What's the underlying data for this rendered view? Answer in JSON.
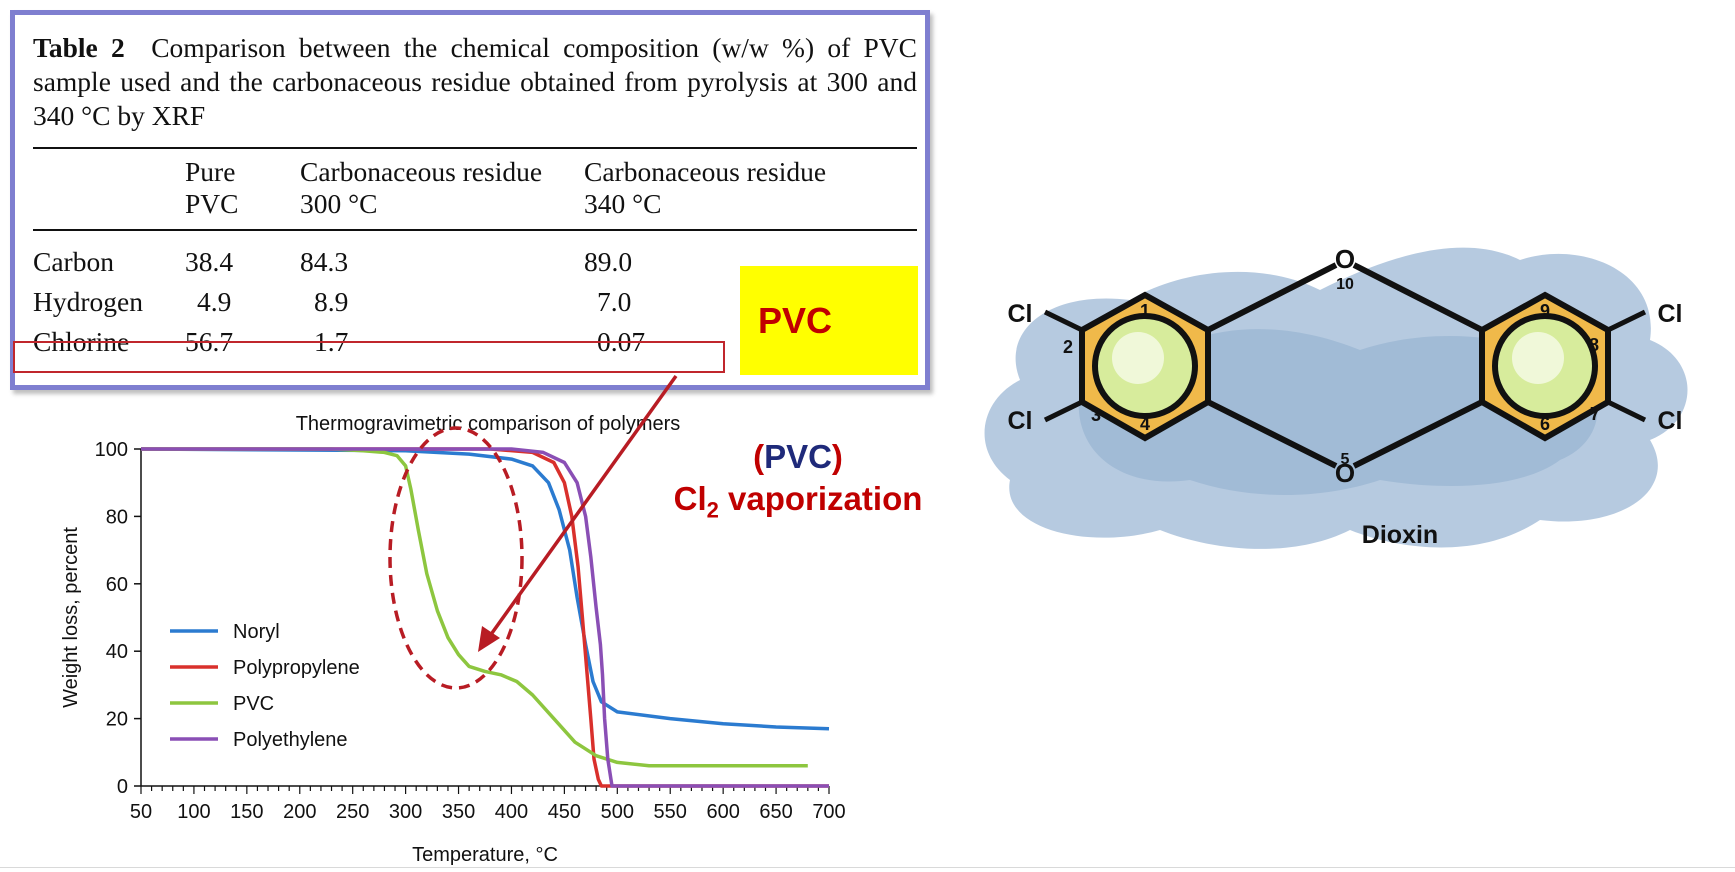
{
  "table": {
    "caption_label": "Table 2",
    "caption_text": "Comparison between the chemical composition (w/w %) of PVC sample used and the carbonaceous residue obtained from pyrolysis at 300 and 340 °C by XRF",
    "headers": [
      [
        "Pure",
        "PVC"
      ],
      [
        "Carbonaceous residue",
        "300 °C"
      ],
      [
        "Carbonaceous residue",
        "340 °C"
      ]
    ],
    "rows": [
      {
        "label": "Carbon",
        "values": [
          "38.4",
          "84.3",
          "89.0"
        ]
      },
      {
        "label": "Hydrogen",
        "values": [
          "4.9",
          "8.9",
          "7.0"
        ]
      },
      {
        "label": "Chlorine",
        "values": [
          "56.7",
          "1.7",
          "0.07"
        ]
      }
    ]
  },
  "badge": "PVC",
  "annotation": {
    "line1_open": "(",
    "line1_word": "PVC",
    "line1_close": ")",
    "line2_prefix": "Cl",
    "line2_sub": "2",
    "line2_suffix": " vaporization"
  },
  "chart_data": {
    "type": "line",
    "title": "Thermogravimetric comparison of polymers",
    "xlabel": "Temperature, °C",
    "ylabel": "Weight loss, percent",
    "xlim": [
      50,
      700
    ],
    "ylim": [
      0,
      100
    ],
    "xticks": [
      50,
      100,
      150,
      200,
      250,
      300,
      350,
      400,
      450,
      500,
      550,
      600,
      650,
      700
    ],
    "yticks": [
      0,
      20,
      40,
      60,
      80,
      100
    ],
    "legend_position": "center-left",
    "series": [
      {
        "name": "Noryl",
        "color": "#2b7bd0",
        "points": [
          [
            50,
            100
          ],
          [
            300,
            99.5
          ],
          [
            360,
            98.5
          ],
          [
            400,
            97
          ],
          [
            420,
            95
          ],
          [
            435,
            90
          ],
          [
            445,
            82
          ],
          [
            455,
            70
          ],
          [
            462,
            56
          ],
          [
            470,
            42
          ],
          [
            477,
            31
          ],
          [
            485,
            25
          ],
          [
            500,
            22
          ],
          [
            550,
            20
          ],
          [
            600,
            18.5
          ],
          [
            650,
            17.5
          ],
          [
            700,
            17
          ]
        ]
      },
      {
        "name": "Polypropylene",
        "color": "#d9302c",
        "points": [
          [
            50,
            100
          ],
          [
            380,
            100
          ],
          [
            420,
            99
          ],
          [
            440,
            96
          ],
          [
            450,
            90
          ],
          [
            457,
            80
          ],
          [
            463,
            65
          ],
          [
            467,
            50
          ],
          [
            471,
            35
          ],
          [
            475,
            20
          ],
          [
            478,
            8
          ],
          [
            482,
            2
          ],
          [
            485,
            0
          ],
          [
            530,
            0
          ],
          [
            700,
            0
          ]
        ]
      },
      {
        "name": "PVC",
        "color": "#8dc63f",
        "points": [
          [
            50,
            100
          ],
          [
            230,
            100
          ],
          [
            260,
            99.5
          ],
          [
            280,
            99
          ],
          [
            292,
            98
          ],
          [
            300,
            95
          ],
          [
            305,
            88
          ],
          [
            312,
            76
          ],
          [
            320,
            63
          ],
          [
            330,
            52
          ],
          [
            340,
            44
          ],
          [
            350,
            39
          ],
          [
            360,
            35.5
          ],
          [
            375,
            34
          ],
          [
            390,
            33
          ],
          [
            405,
            31
          ],
          [
            420,
            27
          ],
          [
            440,
            20
          ],
          [
            460,
            13
          ],
          [
            480,
            9
          ],
          [
            500,
            7
          ],
          [
            530,
            6
          ],
          [
            580,
            6
          ],
          [
            680,
            6
          ]
        ]
      },
      {
        "name": "Polyethylene",
        "color": "#8a4fb5",
        "points": [
          [
            50,
            100
          ],
          [
            400,
            100
          ],
          [
            430,
            99
          ],
          [
            450,
            96
          ],
          [
            462,
            90
          ],
          [
            470,
            80
          ],
          [
            475,
            68
          ],
          [
            480,
            53
          ],
          [
            484,
            42
          ],
          [
            486,
            33
          ],
          [
            488,
            20
          ],
          [
            491,
            8
          ],
          [
            495,
            0
          ],
          [
            520,
            0
          ],
          [
            700,
            0
          ]
        ]
      }
    ],
    "annotations": [
      "PVC dip highlighted with dashed ellipse around 300–400 °C"
    ]
  },
  "dioxin": {
    "name": "Dioxin",
    "atom_labels": [
      "1",
      "2",
      "3",
      "4",
      "5",
      "6",
      "7",
      "8",
      "9",
      "10"
    ],
    "oxygen": "O",
    "chlorine": "Cl",
    "colors": {
      "ring": "#f0b94a",
      "inner": "#bfe07a",
      "cloud": "#a7bfd8"
    }
  }
}
